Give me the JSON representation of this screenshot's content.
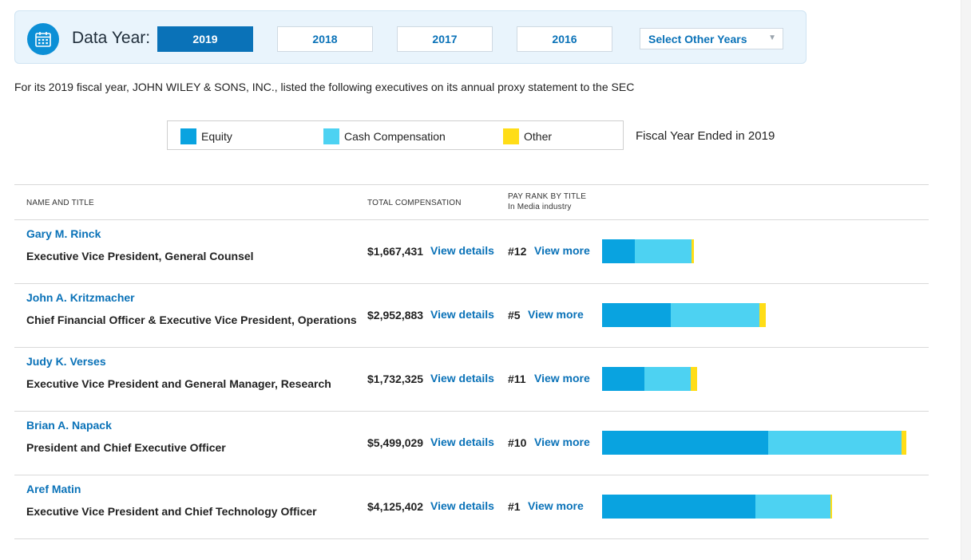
{
  "header": {
    "label": "Data Year:",
    "calendar_icon": "calendar-icon",
    "years": [
      "2019",
      "2018",
      "2017",
      "2016"
    ],
    "active_year": "2019",
    "select_other": "Select Other Years"
  },
  "intro_text": "For its 2019 fiscal year, JOHN WILEY & SONS, INC., listed the following executives on its annual proxy statement to the SEC",
  "legend": {
    "items": [
      {
        "label": "Equity",
        "color": "#09a3e0"
      },
      {
        "label": "Cash Compensation",
        "color": "#4dd2f2"
      },
      {
        "label": "Other",
        "color": "#ffdd17"
      }
    ],
    "fiscal_label": "Fiscal Year Ended in 2019"
  },
  "table": {
    "col_name": "NAME AND TITLE",
    "col_total": "TOTAL COMPENSATION",
    "col_rank": "PAY RANK BY TITLE",
    "col_rank_sub": "In Media industry",
    "view_details_label": "View details",
    "view_more_label": "View more",
    "rows": [
      {
        "name": "Gary M. Rinck",
        "title": "Executive Vice President, General Counsel",
        "total": "$1,667,431",
        "rank": "#12",
        "equity": 0.4,
        "cash": 0.7,
        "other": 0.03
      },
      {
        "name": "John A. Kritzmacher",
        "title": "Chief Financial Officer & Executive Vice President, Operations",
        "total": "$2,952,883",
        "rank": "#5",
        "equity": 0.84,
        "cash": 1.09,
        "other": 0.08
      },
      {
        "name": "Judy K. Verses",
        "title": "Executive Vice President and General Manager, Research",
        "total": "$1,732,325",
        "rank": "#11",
        "equity": 0.52,
        "cash": 0.57,
        "other": 0.08
      },
      {
        "name": "Brian A. Napack",
        "title": "President and Chief Executive Officer",
        "total": "$5,499,029",
        "rank": "#10",
        "equity": 2.04,
        "cash": 1.64,
        "other": 0.06
      },
      {
        "name": "Aref Matin",
        "title": "Executive Vice President and Chief Technology Officer",
        "total": "$4,125,402",
        "rank": "#1",
        "equity": 1.88,
        "cash": 0.92,
        "other": 0.01
      }
    ]
  }
}
